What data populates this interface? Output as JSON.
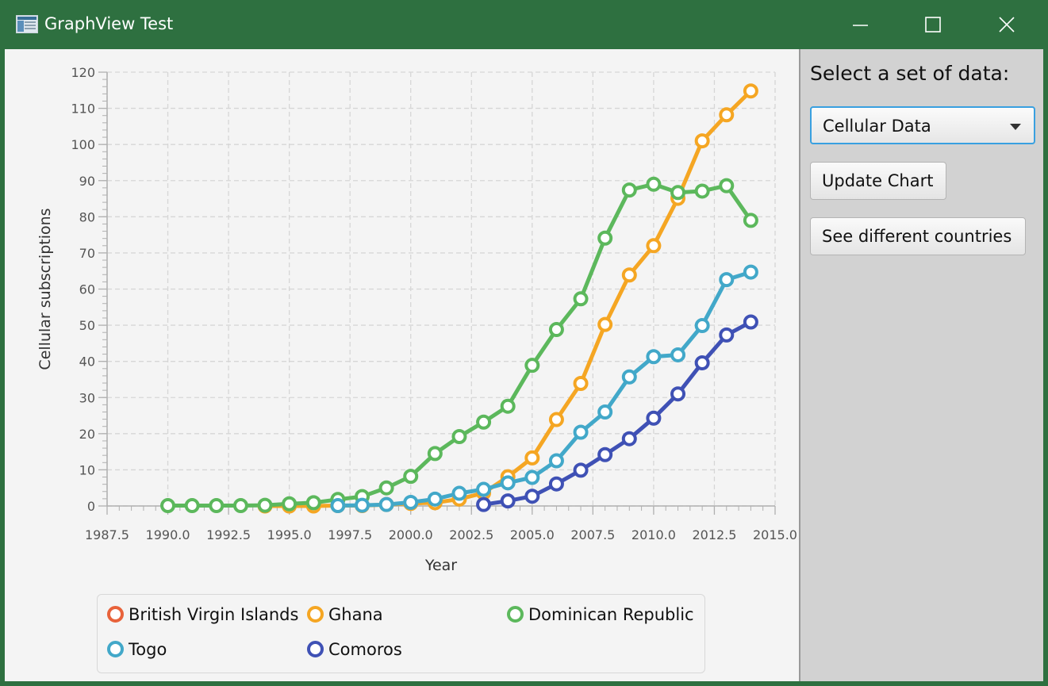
{
  "window": {
    "title": "GraphView Test"
  },
  "sidebar": {
    "prompt": "Select a set of data:",
    "dataset_select": {
      "value": "Cellular Data"
    },
    "update_button": "Update Chart",
    "countries_button": "See different countries"
  },
  "colors": {
    "titlebar": "#2e7040",
    "British Virgin Islands": "#e8623a",
    "Ghana": "#f5a623",
    "Dominican Republic": "#5cb85c",
    "Togo": "#42a8c9",
    "Comoros": "#3f51b5"
  },
  "chart_data": {
    "type": "line",
    "xlabel": "Year",
    "ylabel": "Cellular subscriptions",
    "xlim": [
      1987.5,
      2015.0
    ],
    "ylim": [
      0,
      120
    ],
    "x_ticks": [
      "1987.5",
      "1990.0",
      "1992.5",
      "1995.0",
      "1997.5",
      "2000.0",
      "2002.5",
      "2005.0",
      "2007.5",
      "2010.0",
      "2012.5",
      "2015.0"
    ],
    "y_ticks": [
      "0",
      "10",
      "20",
      "30",
      "40",
      "50",
      "60",
      "70",
      "80",
      "90",
      "100",
      "110",
      "120"
    ],
    "grid": true,
    "legend": "bottom",
    "series": [
      {
        "name": "British Virgin Islands",
        "x": [],
        "y": []
      },
      {
        "name": "Ghana",
        "x": [
          1994,
          1995,
          1996,
          1997,
          1998,
          1999,
          2000,
          2001,
          2002,
          2003,
          2004,
          2005,
          2006,
          2007,
          2008,
          2009,
          2010,
          2011,
          2012,
          2013,
          2014
        ],
        "y": [
          0,
          0,
          0,
          0.1,
          0.1,
          0.4,
          0.7,
          0.9,
          1.9,
          3.6,
          8.1,
          13.3,
          23.9,
          33.9,
          50.2,
          63.9,
          72,
          85.1,
          101,
          108.2,
          114.8
        ]
      },
      {
        "name": "Dominican Republic",
        "x": [
          1990,
          1991,
          1992,
          1993,
          1994,
          1995,
          1996,
          1997,
          1998,
          1999,
          2000,
          2001,
          2002,
          2003,
          2004,
          2005,
          2006,
          2007,
          2008,
          2009,
          2010,
          2011,
          2012,
          2013,
          2014
        ],
        "y": [
          0.1,
          0.1,
          0.1,
          0.1,
          0.2,
          0.6,
          0.9,
          1.8,
          2.6,
          5,
          8.2,
          14.5,
          19.2,
          23.2,
          27.6,
          38.9,
          48.8,
          57.3,
          74.1,
          87.4,
          89,
          86.7,
          87.1,
          88.6,
          79
        ]
      },
      {
        "name": "Togo",
        "x": [
          1997,
          1998,
          1999,
          2000,
          2001,
          2002,
          2003,
          2004,
          2005,
          2006,
          2007,
          2008,
          2009,
          2010,
          2011,
          2012,
          2013,
          2014
        ],
        "y": [
          0.1,
          0.2,
          0.4,
          1,
          1.9,
          3.5,
          4.6,
          6.4,
          7.9,
          12.5,
          20.4,
          26,
          35.7,
          41.3,
          41.8,
          49.9,
          62.6,
          64.7
        ]
      },
      {
        "name": "Comoros",
        "x": [
          2003,
          2004,
          2005,
          2006,
          2007,
          2008,
          2009,
          2010,
          2011,
          2012,
          2013,
          2014
        ],
        "y": [
          0.4,
          1.4,
          2.7,
          6.1,
          9.9,
          14.2,
          18.6,
          24.3,
          31,
          39.6,
          47.3,
          50.9
        ]
      }
    ]
  }
}
